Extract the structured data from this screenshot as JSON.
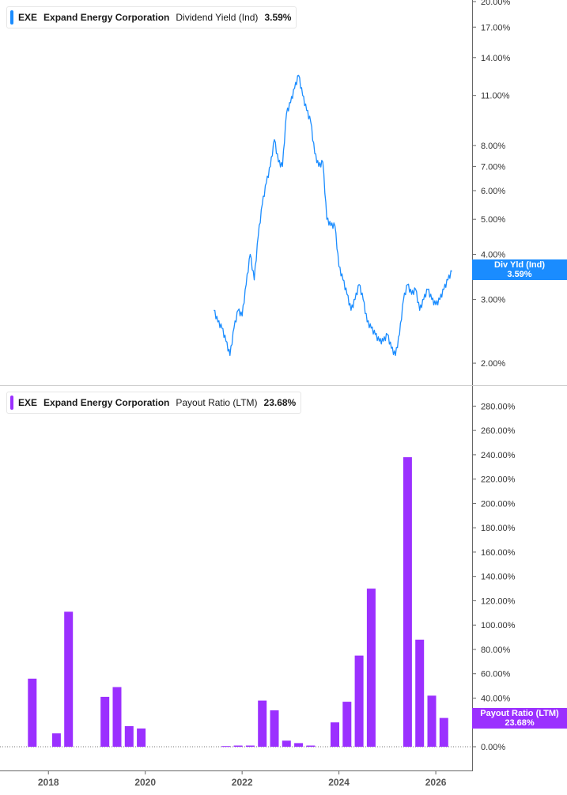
{
  "colors": {
    "yield": "#1a8cff",
    "payout": "#9b30ff",
    "tag_yield": "#1a8cff",
    "tag_payout": "#9b30ff"
  },
  "legend_top": {
    "ticker": "EXE",
    "company": "Expand Energy Corporation",
    "metric": "Dividend Yield (Ind)",
    "value": "3.59%"
  },
  "legend_bottom": {
    "ticker": "EXE",
    "company": "Expand Energy Corporation",
    "metric": "Payout Ratio (LTM)",
    "value": "23.68%"
  },
  "tag_top": {
    "label": "Div Yld (Ind)",
    "value": "3.59%"
  },
  "tag_bottom": {
    "label": "Payout Ratio (LTM)",
    "value": "23.68%"
  },
  "chart_data": [
    {
      "type": "line",
      "series": [
        {
          "name": "Dividend Yield (Ind)",
          "x": [
            "2021-06",
            "2021-07",
            "2021-08",
            "2021-09",
            "2021-10",
            "2021-11",
            "2021-12",
            "2022-01",
            "2022-02",
            "2022-03",
            "2022-04",
            "2022-05",
            "2022-06",
            "2022-07",
            "2022-08",
            "2022-09",
            "2022-10",
            "2022-11",
            "2022-12",
            "2023-01",
            "2023-02",
            "2023-03",
            "2023-04",
            "2023-05",
            "2023-06",
            "2023-07",
            "2023-08",
            "2023-09",
            "2023-10",
            "2023-11",
            "2023-12",
            "2024-01",
            "2024-02",
            "2024-03",
            "2024-04",
            "2024-05",
            "2024-06",
            "2024-07",
            "2024-08",
            "2024-09",
            "2024-10",
            "2024-11",
            "2024-12",
            "2025-01",
            "2025-02",
            "2025-03",
            "2025-04",
            "2025-05",
            "2025-06",
            "2025-07",
            "2025-08",
            "2025-09",
            "2025-10",
            "2025-11",
            "2025-12",
            "2026-01",
            "2026-02",
            "2026-03",
            "2026-04",
            "2026-05"
          ],
          "values": [
            2.8,
            2.6,
            2.5,
            2.3,
            2.1,
            2.5,
            2.8,
            2.7,
            3.3,
            4.0,
            3.4,
            4.5,
            5.5,
            6.3,
            7.0,
            8.3,
            7.2,
            7.0,
            9.8,
            10.5,
            11.5,
            12.5,
            11.0,
            10.0,
            9.3,
            7.6,
            7.0,
            7.2,
            5.0,
            4.8,
            4.8,
            3.7,
            3.4,
            3.1,
            2.8,
            3.0,
            3.3,
            3.0,
            2.6,
            2.5,
            2.4,
            2.3,
            2.3,
            2.4,
            2.2,
            2.1,
            2.4,
            3.0,
            3.3,
            3.1,
            3.2,
            2.8,
            3.0,
            3.2,
            3.0,
            2.9,
            3.0,
            3.2,
            3.4,
            3.59
          ]
        }
      ],
      "y_ticks": [
        "2.00%",
        "3.00%",
        "4.00%",
        "5.00%",
        "6.00%",
        "7.00%",
        "8.00%",
        "11.00%",
        "14.00%",
        "17.00%",
        "20.00%"
      ],
      "ylim": [
        1.8,
        20
      ],
      "y_scale": "log"
    },
    {
      "type": "bar",
      "series": [
        {
          "name": "Payout Ratio (LTM)",
          "x": [
            "2017-09",
            "2018-03",
            "2018-06",
            "2019-03",
            "2019-06",
            "2019-09",
            "2019-12",
            "2021-09",
            "2021-12",
            "2022-03",
            "2022-06",
            "2022-09",
            "2022-12",
            "2023-03",
            "2023-06",
            "2023-12",
            "2024-03",
            "2024-06",
            "2024-09",
            "2025-06",
            "2025-09",
            "2025-12",
            "2026-03"
          ],
          "values": [
            56,
            11,
            111,
            41,
            49,
            17,
            15,
            0.5,
            1,
            1,
            38,
            30,
            5,
            3,
            1,
            20,
            37,
            75,
            130,
            238,
            88,
            42,
            23.68
          ]
        }
      ],
      "y_ticks": [
        "0.00%",
        "20.00%",
        "40.00%",
        "60.00%",
        "80.00%",
        "100.00%",
        "120.00%",
        "140.00%",
        "160.00%",
        "180.00%",
        "200.00%",
        "220.00%",
        "240.00%",
        "260.00%",
        "280.00%"
      ],
      "ylim": [
        0,
        290
      ],
      "x_ticks": [
        "2018",
        "2020",
        "2022",
        "2024",
        "2026"
      ]
    }
  ]
}
